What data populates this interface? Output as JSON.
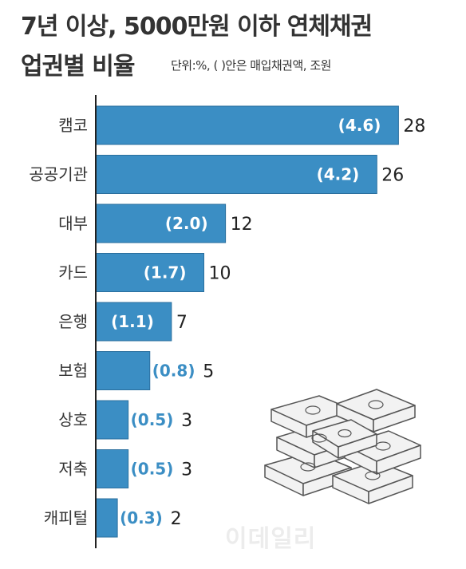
{
  "title": {
    "line1": "7년 이상, 5000만원 이하 연체채권",
    "line2": "업권별 비율",
    "note": "단위:%, (  )안은 매입채권액, 조원"
  },
  "watermark": "이데일리",
  "chart_data": {
    "type": "bar",
    "orientation": "horizontal",
    "categories": [
      "캠코",
      "공공기관",
      "대부",
      "카드",
      "은행",
      "보험",
      "상호",
      "저축",
      "캐피털"
    ],
    "values": [
      28,
      26,
      12,
      10,
      7,
      5,
      3,
      3,
      2
    ],
    "amount_labels": [
      "(4.6)",
      "(4.2)",
      "(2.0)",
      "(1.7)",
      "(1.1)",
      "(0.8)",
      "(0.5)",
      "(0.5)",
      "(0.3)"
    ],
    "bar_color": "#3b8ec4",
    "bar_border_color": "#2a6f9e",
    "axis_color": "#222222"
  }
}
